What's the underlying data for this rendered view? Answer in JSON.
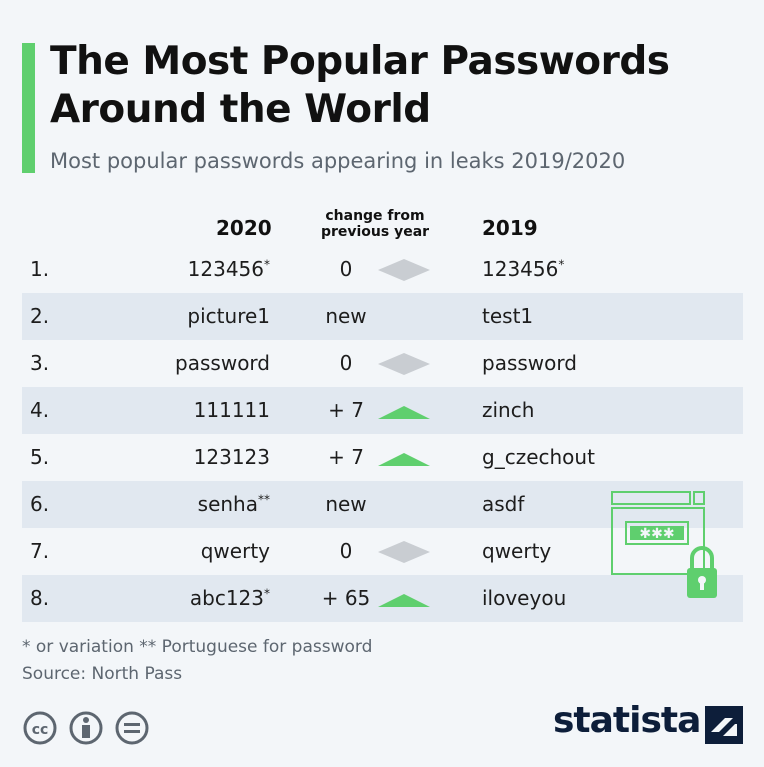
{
  "header": {
    "title": "The Most Popular Passwords Around the World",
    "subtitle": "Most popular passwords appearing in leaks 2019/2020"
  },
  "columns": {
    "year_2020": "2020",
    "change_line1": "change from",
    "change_line2": "previous year",
    "year_2019": "2019"
  },
  "chart_data": {
    "type": "table",
    "columns": [
      "",
      "2020",
      "change from previous year",
      "2019"
    ],
    "rows": [
      {
        "rank": "1.",
        "pw2020": "123456",
        "note2020": "*",
        "change": "0",
        "trend": "same",
        "pw2019": "123456",
        "note2019": "*"
      },
      {
        "rank": "2.",
        "pw2020": "picture1",
        "note2020": "",
        "change": "new",
        "trend": "none",
        "pw2019": "test1",
        "note2019": ""
      },
      {
        "rank": "3.",
        "pw2020": "password",
        "note2020": "",
        "change": "0",
        "trend": "same",
        "pw2019": "password",
        "note2019": ""
      },
      {
        "rank": "4.",
        "pw2020": "111111",
        "note2020": "",
        "change": "+ 7",
        "trend": "up",
        "pw2019": "zinch",
        "note2019": ""
      },
      {
        "rank": "5.",
        "pw2020": "123123",
        "note2020": "",
        "change": "+ 7",
        "trend": "up",
        "pw2019": "g_czechout",
        "note2019": ""
      },
      {
        "rank": "6.",
        "pw2020": "senha",
        "note2020": "**",
        "change": "new",
        "trend": "none",
        "pw2019": "asdf",
        "note2019": ""
      },
      {
        "rank": "7.",
        "pw2020": "qwerty",
        "note2020": "",
        "change": "0",
        "trend": "same",
        "pw2019": "qwerty",
        "note2019": ""
      },
      {
        "rank": "8.",
        "pw2020": "abc123",
        "note2020": "*",
        "change": "+ 65",
        "trend": "up",
        "pw2019": "iloveyou",
        "note2019": ""
      }
    ]
  },
  "colors": {
    "accent": "#5fcf6e",
    "up_arrow": "#5fcf6e",
    "same_arrow": "#c9cdd2",
    "row_shade": "#e1e8f0"
  },
  "footer": {
    "note": "* or variation    ** Portuguese for password",
    "source": "Source: North Pass",
    "brand": "statista"
  },
  "icons": [
    "cc-icon",
    "attribution-icon",
    "no-derivatives-icon",
    "statista-logo-icon",
    "password-lock-icon"
  ]
}
